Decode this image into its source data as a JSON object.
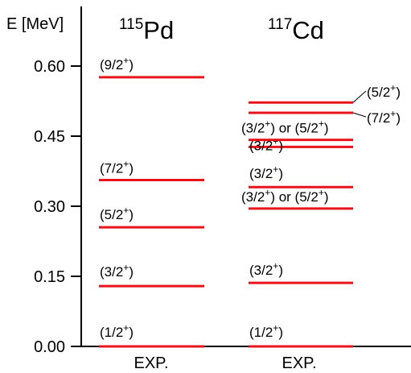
{
  "chart_data": {
    "type": "level-scheme",
    "ylabel": "E [MeV]",
    "ylim": [
      0.0,
      0.6
    ],
    "yticks": [
      {
        "value": 0.0,
        "label": "0.00"
      },
      {
        "value": 0.15,
        "label": "0.15"
      },
      {
        "value": 0.3,
        "label": "0.30"
      },
      {
        "value": 0.45,
        "label": "0.45"
      },
      {
        "value": 0.6,
        "label": "0.60"
      }
    ],
    "level_color": "#e8141c",
    "columns": [
      {
        "mass": "115",
        "element": "Pd",
        "footer": "EXP.",
        "levels": [
          {
            "energy": 0.0,
            "spin": "(1/2",
            "parity": "+"
          },
          {
            "energy": 0.129,
            "spin": "(3/2",
            "parity": "+"
          },
          {
            "energy": 0.255,
            "spin": "(5/2",
            "parity": "+"
          },
          {
            "energy": 0.356,
            "spin": "(7/2",
            "parity": "+"
          },
          {
            "energy": 0.576,
            "spin": "(9/2",
            "parity": "+"
          }
        ]
      },
      {
        "mass": "117",
        "element": "Cd",
        "footer": "EXP.",
        "levels": [
          {
            "energy": 0.0,
            "spin": "(1/2",
            "parity": "+"
          },
          {
            "energy": 0.136,
            "spin": "(3/2",
            "parity": "+"
          },
          {
            "energy": 0.295,
            "spin": "(3/2",
            "parity": "+",
            "alt_spin": "(5/2",
            "alt_parity": "+"
          },
          {
            "energy": 0.341,
            "spin": "(3/2",
            "parity": "+"
          },
          {
            "energy": 0.427,
            "spin": "(3/2",
            "parity": "+"
          },
          {
            "energy": 0.442,
            "spin": "(3/2",
            "parity": "+",
            "alt_spin": "(5/2",
            "alt_parity": "+"
          },
          {
            "energy": 0.5,
            "spin": "(7/2",
            "parity": "+"
          },
          {
            "energy": 0.522,
            "spin": "(5/2",
            "parity": "+"
          }
        ]
      }
    ],
    "or_word": "or"
  }
}
